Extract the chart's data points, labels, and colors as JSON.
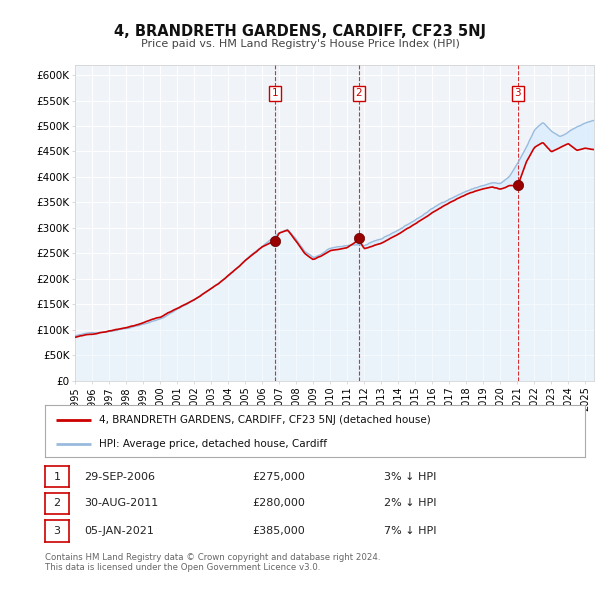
{
  "title": "4, BRANDRETH GARDENS, CARDIFF, CF23 5NJ",
  "subtitle": "Price paid vs. HM Land Registry's House Price Index (HPI)",
  "legend_line1": "4, BRANDRETH GARDENS, CARDIFF, CF23 5NJ (detached house)",
  "legend_line2": "HPI: Average price, detached house, Cardiff",
  "footer_line1": "Contains HM Land Registry data © Crown copyright and database right 2024.",
  "footer_line2": "This data is licensed under the Open Government Licence v3.0.",
  "transactions": [
    {
      "num": 1,
      "date": "29-SEP-2006",
      "price": 275000,
      "pct": "3%",
      "direction": "↓"
    },
    {
      "num": 2,
      "date": "30-AUG-2011",
      "price": 280000,
      "pct": "2%",
      "direction": "↓"
    },
    {
      "num": 3,
      "date": "05-JAN-2021",
      "price": 385000,
      "pct": "7%",
      "direction": "↓"
    }
  ],
  "transaction_dates_decimal": [
    2006.75,
    2011.67,
    2021.02
  ],
  "transaction_prices": [
    275000,
    280000,
    385000
  ],
  "price_line_color": "#cc0000",
  "hpi_line_color": "#99bbdd",
  "hpi_fill_color": "#ddeeff",
  "vline_color": "#cc0000",
  "marker_color": "#990000",
  "ylim": [
    0,
    620000
  ],
  "yticks": [
    0,
    50000,
    100000,
    150000,
    200000,
    250000,
    300000,
    350000,
    400000,
    450000,
    500000,
    550000,
    600000
  ],
  "background_color": "#ffffff",
  "plot_bg_color": "#f0f4f8",
  "grid_color": "#ffffff",
  "xstart": 1995,
  "xend": 2025.5,
  "hpi_anchor_x": [
    1995,
    1996,
    1997,
    1998,
    1999,
    2000,
    2001,
    2002,
    2003,
    2004,
    2005,
    2006,
    2007,
    2007.5,
    2008,
    2008.5,
    2009,
    2009.5,
    2010,
    2011,
    2011.5,
    2012,
    2013,
    2014,
    2015,
    2016,
    2017,
    2018,
    2019,
    2019.5,
    2020,
    2020.5,
    2021,
    2021.5,
    2022,
    2022.5,
    2023,
    2023.5,
    2024,
    2024.5,
    2025,
    2025.5
  ],
  "hpi_anchor_y": [
    88000,
    93000,
    98000,
    105000,
    115000,
    125000,
    143000,
    162000,
    185000,
    210000,
    240000,
    268000,
    295000,
    302000,
    282000,
    258000,
    245000,
    252000,
    262000,
    268000,
    270000,
    268000,
    278000,
    296000,
    316000,
    338000,
    358000,
    374000,
    385000,
    390000,
    388000,
    400000,
    425000,
    455000,
    490000,
    505000,
    488000,
    478000,
    488000,
    498000,
    505000,
    510000
  ],
  "price_anchor_x": [
    1995,
    1996,
    1997,
    1998,
    1999,
    2000,
    2001,
    2002,
    2003,
    2004,
    2005,
    2006,
    2006.75,
    2007,
    2007.5,
    2008,
    2008.5,
    2009,
    2009.5,
    2010,
    2011,
    2011.67,
    2012,
    2013,
    2014,
    2015,
    2016,
    2017,
    2018,
    2019,
    2019.5,
    2020,
    2020.5,
    2021.02,
    2021.5,
    2022,
    2022.5,
    2023,
    2023.5,
    2024,
    2024.5,
    2025,
    2025.5
  ],
  "price_anchor_y": [
    85000,
    90000,
    96000,
    103000,
    112000,
    122000,
    140000,
    158000,
    180000,
    205000,
    235000,
    262000,
    275000,
    290000,
    296000,
    275000,
    252000,
    240000,
    248000,
    258000,
    263000,
    280000,
    262000,
    272000,
    290000,
    310000,
    330000,
    350000,
    368000,
    378000,
    382000,
    378000,
    385000,
    385000,
    430000,
    460000,
    470000,
    452000,
    460000,
    468000,
    455000,
    460000,
    456000
  ]
}
